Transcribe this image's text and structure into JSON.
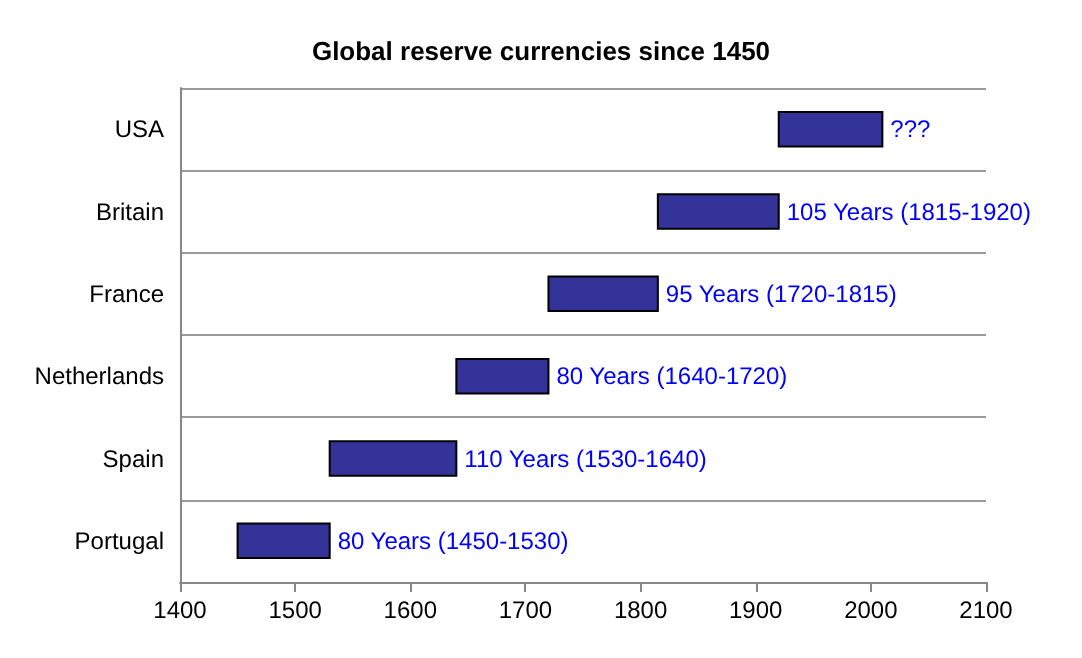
{
  "chart_data": {
    "type": "bar",
    "orientation": "horizontal",
    "title": "Global reserve currencies since 1450",
    "categories": [
      "USA",
      "Britain",
      "France",
      "Netherlands",
      "Spain",
      "Portugal"
    ],
    "base": [
      1920,
      1815,
      1720,
      1640,
      1530,
      1450
    ],
    "values": [
      90,
      105,
      95,
      80,
      110,
      80
    ],
    "value_labels": [
      "???",
      "105 Years (1815-1920)",
      "95 Years (1720-1815)",
      "80 Years (1640-1720)",
      "110 Years (1530-1640)",
      "80 Years (1450-1530)"
    ],
    "color": "#333399",
    "xlim": [
      1400,
      2100
    ],
    "xticks": [
      1400,
      1500,
      1600,
      1700,
      1800,
      1900,
      2000,
      2100
    ],
    "grid": "y"
  }
}
